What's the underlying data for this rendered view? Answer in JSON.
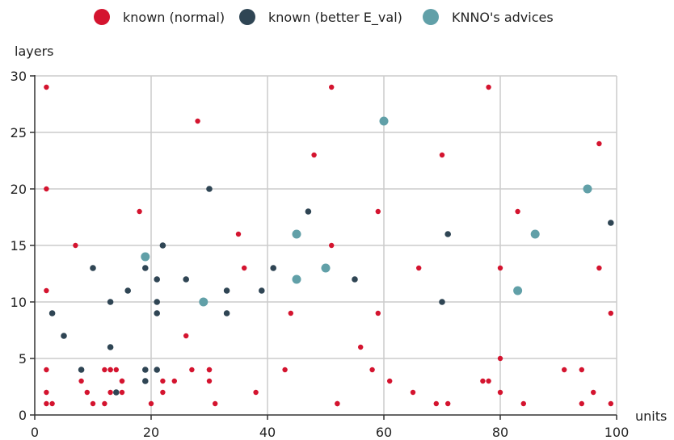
{
  "chart_data": {
    "type": "scatter",
    "title": "",
    "xlabel": "units",
    "ylabel": "layers",
    "xlim": [
      0,
      100
    ],
    "ylim": [
      0,
      30
    ],
    "xticks": [
      0,
      20,
      40,
      60,
      80,
      100
    ],
    "yticks": [
      0,
      5,
      10,
      15,
      20,
      25,
      30
    ],
    "grid": true,
    "legend_position": "top-center",
    "series": [
      {
        "name": "known (normal)",
        "color": "#d4142f",
        "points": [
          [
            2,
            29
          ],
          [
            2,
            20
          ],
          [
            2,
            11
          ],
          [
            2,
            4
          ],
          [
            2,
            2
          ],
          [
            2,
            1
          ],
          [
            3,
            1
          ],
          [
            7,
            15
          ],
          [
            8,
            3
          ],
          [
            9,
            2
          ],
          [
            10,
            1
          ],
          [
            12,
            1
          ],
          [
            12,
            4
          ],
          [
            13,
            4
          ],
          [
            13,
            4
          ],
          [
            13,
            2
          ],
          [
            14,
            4
          ],
          [
            15,
            3
          ],
          [
            15,
            3
          ],
          [
            15,
            2
          ],
          [
            18,
            18
          ],
          [
            20,
            1
          ],
          [
            22,
            3
          ],
          [
            22,
            2
          ],
          [
            24,
            3
          ],
          [
            26,
            7
          ],
          [
            27,
            4
          ],
          [
            28,
            26
          ],
          [
            30,
            4
          ],
          [
            30,
            3
          ],
          [
            30,
            4
          ],
          [
            31,
            1
          ],
          [
            35,
            16
          ],
          [
            36,
            13
          ],
          [
            38,
            2
          ],
          [
            43,
            4
          ],
          [
            44,
            9
          ],
          [
            48,
            23
          ],
          [
            51,
            29
          ],
          [
            51,
            15
          ],
          [
            52,
            1
          ],
          [
            52,
            1
          ],
          [
            56,
            6
          ],
          [
            58,
            4
          ],
          [
            59,
            18
          ],
          [
            59,
            9
          ],
          [
            61,
            3
          ],
          [
            65,
            2
          ],
          [
            66,
            13
          ],
          [
            69,
            1
          ],
          [
            70,
            23
          ],
          [
            71,
            1
          ],
          [
            77,
            3
          ],
          [
            78,
            3
          ],
          [
            78,
            29
          ],
          [
            80,
            13
          ],
          [
            80,
            5
          ],
          [
            80,
            2
          ],
          [
            83,
            18
          ],
          [
            84,
            1
          ],
          [
            91,
            4
          ],
          [
            94,
            4
          ],
          [
            94,
            1
          ],
          [
            96,
            2
          ],
          [
            97,
            24
          ],
          [
            97,
            13
          ],
          [
            99,
            9
          ],
          [
            99,
            1
          ]
        ]
      },
      {
        "name": "known (better E_val)",
        "color": "#2f4554",
        "points": [
          [
            3,
            9
          ],
          [
            5,
            7
          ],
          [
            8,
            4
          ],
          [
            10,
            13
          ],
          [
            13,
            10
          ],
          [
            13,
            6
          ],
          [
            14,
            2
          ],
          [
            16,
            11
          ],
          [
            19,
            13
          ],
          [
            19,
            4
          ],
          [
            19,
            3
          ],
          [
            21,
            12
          ],
          [
            21,
            10
          ],
          [
            21,
            9
          ],
          [
            21,
            4
          ],
          [
            22,
            15
          ],
          [
            26,
            12
          ],
          [
            30,
            20
          ],
          [
            33,
            11
          ],
          [
            33,
            9
          ],
          [
            39,
            11
          ],
          [
            41,
            13
          ],
          [
            47,
            18
          ],
          [
            55,
            12
          ],
          [
            70,
            10
          ],
          [
            71,
            16
          ],
          [
            99,
            17
          ]
        ]
      },
      {
        "name": "KNNO's advices",
        "color": "#61a0a8",
        "points": [
          [
            19,
            14
          ],
          [
            29,
            10
          ],
          [
            45,
            16
          ],
          [
            45,
            12
          ],
          [
            50,
            13
          ],
          [
            60,
            26
          ],
          [
            83,
            11
          ],
          [
            86,
            16
          ],
          [
            95,
            20
          ]
        ]
      }
    ]
  }
}
